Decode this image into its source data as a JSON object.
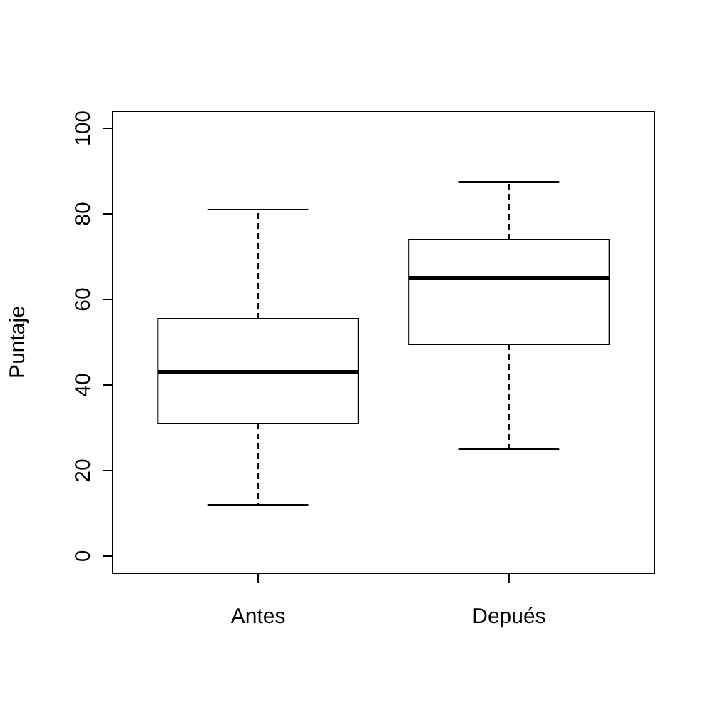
{
  "chart_data": {
    "type": "box",
    "ylabel": "Puntaje",
    "categories": [
      "Antes",
      "Depués"
    ],
    "boxes": [
      {
        "low": 12,
        "q1": 31,
        "median": 43,
        "q3": 55.5,
        "high": 81
      },
      {
        "low": 25,
        "q1": 49.5,
        "median": 65,
        "q3": 74,
        "high": 87.5
      }
    ],
    "ylim": [
      -4,
      104
    ],
    "yticks": [
      0,
      20,
      40,
      60,
      80,
      100
    ],
    "grid": false,
    "line_style": "dashed"
  }
}
